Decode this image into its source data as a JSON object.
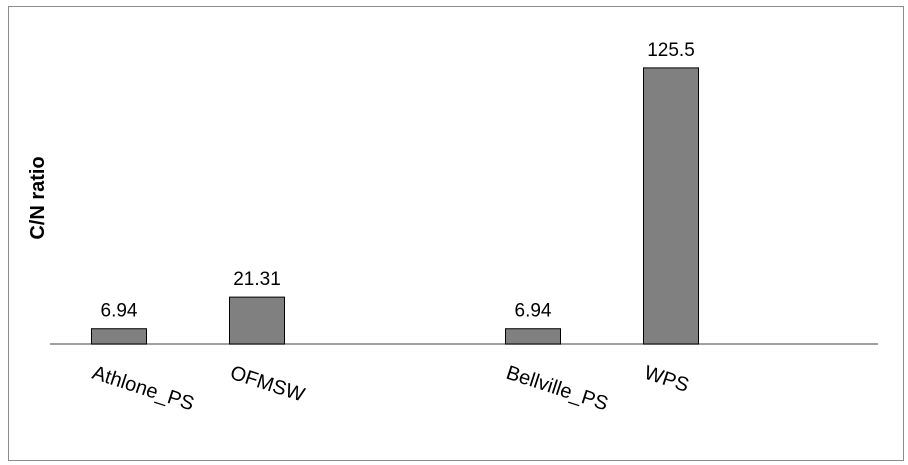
{
  "chart_data": {
    "type": "bar",
    "title": "",
    "xlabel": "",
    "ylabel": "C/N ratio",
    "categories": [
      "Athlone_PS",
      "OFMSW",
      "",
      "Bellville_PS",
      "WPS",
      ""
    ],
    "values": [
      6.94,
      21.31,
      null,
      6.94,
      125.5,
      null
    ],
    "data_labels": [
      "6.94",
      "21.31",
      "",
      "6.94",
      "125.5",
      ""
    ],
    "ylim": [
      0,
      140
    ],
    "grid": false,
    "legend": "none",
    "bar_color": "#808080",
    "bar_edge_color": "#000000"
  }
}
